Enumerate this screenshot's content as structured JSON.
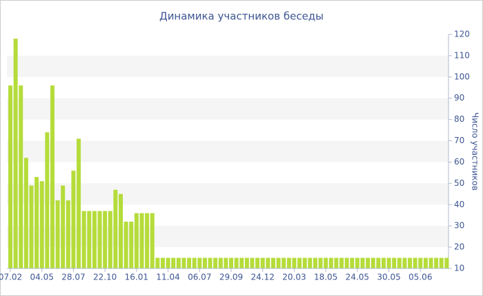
{
  "chart_data": {
    "type": "bar",
    "title": "Динамика участников беседы",
    "y_axis_label": "Число участников",
    "categories": [
      "07.02",
      null,
      null,
      null,
      null,
      null,
      "04.05",
      null,
      null,
      null,
      null,
      null,
      "28.07",
      null,
      null,
      null,
      null,
      null,
      "22.10",
      null,
      null,
      null,
      null,
      null,
      "16.01",
      null,
      null,
      null,
      null,
      null,
      "11.04",
      null,
      null,
      null,
      null,
      null,
      "06.07",
      null,
      null,
      null,
      null,
      null,
      "29.09",
      null,
      null,
      null,
      null,
      null,
      "24.12",
      null,
      null,
      null,
      null,
      null,
      "20.03",
      null,
      null,
      null,
      null,
      null,
      "18.05",
      null,
      null,
      null,
      null,
      null,
      "24.05",
      null,
      null,
      null,
      null,
      null,
      "30.05",
      null,
      null,
      null,
      null,
      null,
      "05.06",
      null,
      null,
      null,
      null,
      null
    ],
    "values": [
      96,
      118,
      96,
      62,
      49,
      53,
      51,
      74,
      96,
      42,
      49,
      42,
      56,
      71,
      37,
      37,
      37,
      37,
      37,
      37,
      47,
      45,
      32,
      32,
      36,
      36,
      36,
      36,
      15,
      15,
      15,
      15,
      15,
      15,
      15,
      15,
      15,
      15,
      15,
      15,
      15,
      15,
      15,
      15,
      15,
      15,
      15,
      15,
      15,
      15,
      15,
      15,
      15,
      15,
      15,
      15,
      15,
      15,
      15,
      15,
      15,
      15,
      15,
      15,
      15,
      15,
      15,
      15,
      15,
      15,
      15,
      15,
      15,
      15,
      15,
      15,
      15,
      15,
      15,
      15,
      15,
      15,
      15,
      15
    ],
    "color": "#b5dc3a",
    "ylim": [
      10,
      120
    ],
    "yticks": [
      10,
      20,
      30,
      40,
      50,
      60,
      70,
      80,
      90,
      100,
      110,
      120
    ],
    "grid": true
  }
}
